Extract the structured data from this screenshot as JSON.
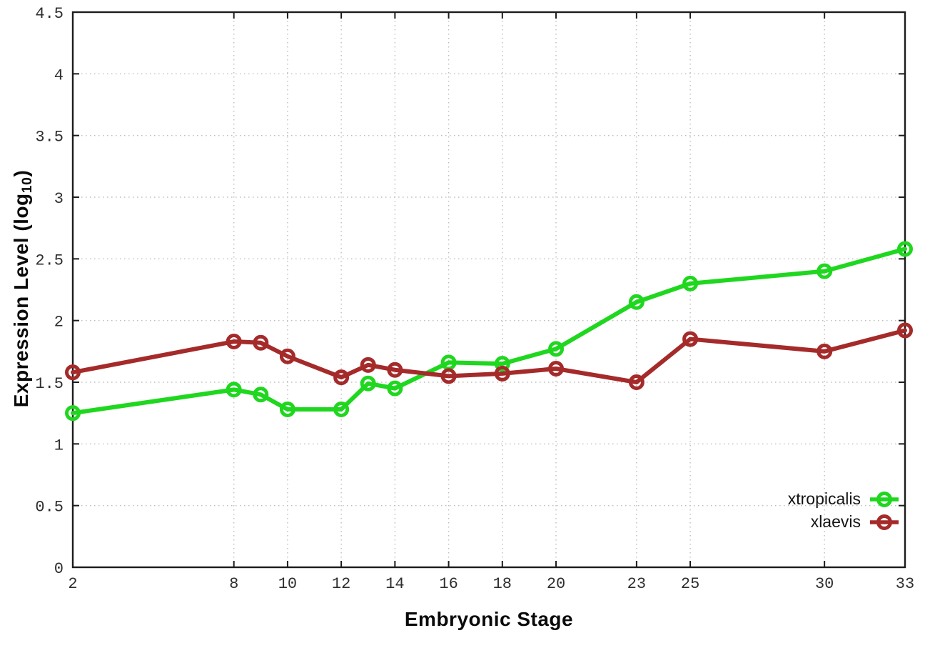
{
  "chart_data": {
    "type": "line",
    "title": "",
    "xlabel": "Embryonic Stage",
    "ylabel": "Expression Level (log10)",
    "ylabel_parts": {
      "pre": "Expression Level (log",
      "sub": "10",
      "post": ")"
    },
    "xlim": [
      2,
      33
    ],
    "ylim": [
      0,
      4.5
    ],
    "grid": true,
    "grid_style": "dotted",
    "grid_color": "#bdbdbd",
    "frame_color": "#1c1c1c",
    "legend_position": "bottom-right",
    "x_ticks": [
      2,
      8,
      10,
      12,
      14,
      16,
      18,
      20,
      23,
      25,
      30,
      33
    ],
    "x_tick_labels": [
      "2",
      "8",
      "10",
      "12",
      "14",
      "16",
      "18",
      "20",
      "23",
      "25",
      "30",
      "33"
    ],
    "y_ticks": [
      0,
      0.5,
      1,
      1.5,
      2,
      2.5,
      3,
      3.5,
      4,
      4.5
    ],
    "y_tick_labels": [
      "0",
      "0.5",
      "1",
      "1.5",
      "2",
      "2.5",
      "3",
      "3.5",
      "4",
      "4.5"
    ],
    "x": [
      2,
      8,
      9,
      10,
      12,
      13,
      14,
      16,
      18,
      20,
      23,
      25,
      30,
      33
    ],
    "series": [
      {
        "name": "xtropicalis",
        "color": "#1fd71f",
        "marker": "open-circle",
        "values": [
          1.25,
          1.44,
          1.4,
          1.28,
          1.28,
          1.49,
          1.45,
          1.66,
          1.65,
          1.77,
          2.15,
          2.3,
          2.4,
          2.58
        ]
      },
      {
        "name": "xlaevis",
        "color": "#a52a2a",
        "marker": "open-circle",
        "values": [
          1.58,
          1.83,
          1.82,
          1.71,
          1.54,
          1.64,
          1.6,
          1.55,
          1.57,
          1.61,
          1.5,
          1.85,
          1.75,
          1.92
        ]
      }
    ]
  }
}
